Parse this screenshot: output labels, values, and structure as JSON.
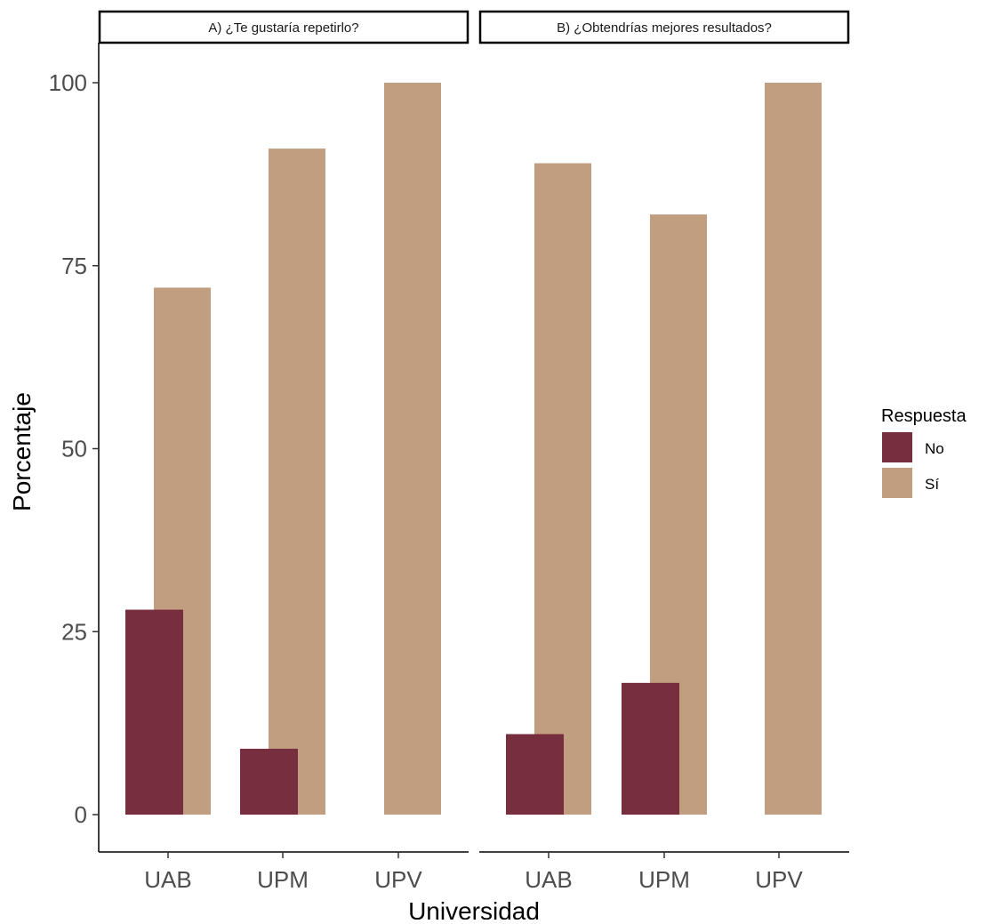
{
  "chart_data": {
    "type": "bar",
    "xlabel": "Universidad",
    "ylabel": "Porcentaje",
    "ylim": [
      0,
      100
    ],
    "yticks": [
      0,
      25,
      50,
      75,
      100
    ],
    "grid": false,
    "legend": {
      "title": "Respuesta",
      "placement": "right",
      "entries": [
        {
          "name": "No",
          "color": "#772F3F"
        },
        {
          "name": "Sí",
          "color": "#C19E7F"
        }
      ]
    },
    "panels": [
      {
        "title": "A) ¿Te gustaría repetirlo?",
        "categories": [
          "UAB",
          "UPM",
          "UPV"
        ],
        "series": [
          {
            "name": "No",
            "values": [
              28,
              9,
              0
            ]
          },
          {
            "name": "Sí",
            "values": [
              72,
              91,
              100
            ]
          }
        ]
      },
      {
        "title": "B) ¿Obtendrías mejores resultados?",
        "categories": [
          "UAB",
          "UPM",
          "UPV"
        ],
        "series": [
          {
            "name": "No",
            "values": [
              11,
              18,
              0
            ]
          },
          {
            "name": "Sí",
            "values": [
              89,
              82,
              100
            ]
          }
        ]
      }
    ]
  }
}
